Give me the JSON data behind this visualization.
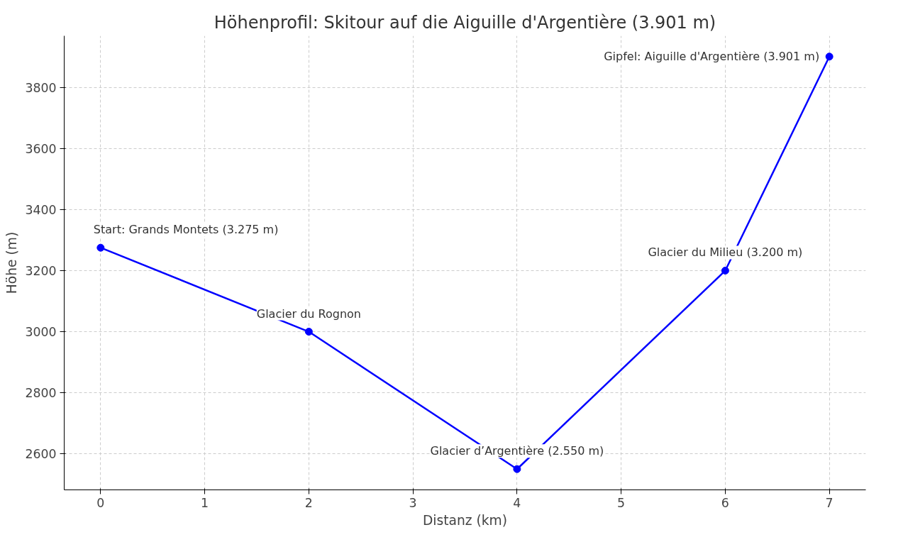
{
  "chart_data": {
    "type": "line",
    "title": "Höhenprofil: Skitour auf die Aiguille d'Argentière (3.901 m)",
    "xlabel": "Distanz (km)",
    "ylabel": "Höhe (m)",
    "x": [
      0,
      2,
      4,
      6,
      7
    ],
    "series": [
      {
        "color": "#0000ff",
        "values": [
          3275,
          3000,
          2550,
          3200,
          3901
        ]
      }
    ],
    "xlim": [
      -0.35,
      7.35
    ],
    "xticks": [
      0,
      1,
      2,
      3,
      4,
      5,
      6,
      7
    ],
    "ylim": [
      2482,
      3969
    ],
    "yticks": [
      2600,
      2800,
      3000,
      3200,
      3400,
      3600,
      3800
    ],
    "grid": true,
    "marker": "circle",
    "line_style": "solid",
    "annotations": [
      {
        "text": "Start: Grands Montets (3.275 m)",
        "x": 0,
        "y": 3275
      },
      {
        "text": "Glacier du Rognon",
        "x": 2,
        "y": 3000
      },
      {
        "text": "Glacier d’Argentière (2.550 m)",
        "x": 4,
        "y": 2550
      },
      {
        "text": "Glacier du Milieu (3.200 m)",
        "x": 6,
        "y": 3200
      },
      {
        "text": "Gipfel: Aiguille d'Argentière (3.901 m)",
        "x": 7,
        "y": 3901
      }
    ]
  }
}
